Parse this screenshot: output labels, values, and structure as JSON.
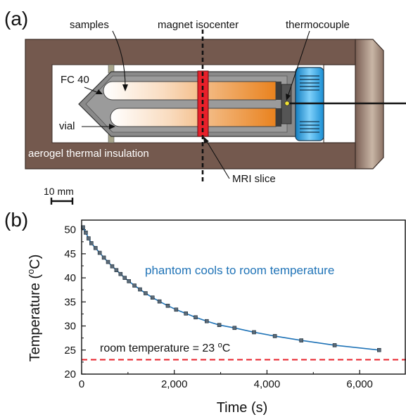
{
  "panel_a": {
    "letter": "(a)",
    "labels": {
      "samples": "samples",
      "magnet_isocenter": "magnet isocenter",
      "thermocouple": "thermocouple",
      "fc40": "FC 40",
      "vial": "vial",
      "insulation": "aerogel thermal insulation",
      "mri_slice": "MRI slice"
    },
    "scale_bar": "10 mm",
    "colors": {
      "housing": "#74594e",
      "slice": "#e8202a",
      "cap": "#1f9be0",
      "fluid": "#8c8c8c"
    }
  },
  "panel_b": {
    "letter": "(b)",
    "annotation": "phantom cools to room temperature",
    "room_label": "room temperature = 23 ",
    "room_label_sup": "o",
    "room_label_unit": "C"
  },
  "chart_data": {
    "type": "line",
    "xlabel": "Time (s)",
    "ylabel_main": "Temperature (",
    "ylabel_sup": "o",
    "ylabel_end": "C)",
    "xlim": [
      0,
      7000
    ],
    "ylim": [
      20,
      52
    ],
    "xticks": [
      0,
      2000,
      4000,
      6000
    ],
    "xtick_labels": [
      "0",
      "2,000",
      "4,000",
      "6,000"
    ],
    "yticks": [
      20,
      25,
      30,
      35,
      40,
      45,
      50
    ],
    "ytick_labels": [
      "20",
      "25",
      "30",
      "35",
      "40",
      "45",
      "50"
    ],
    "reference_line": {
      "y": 23,
      "color": "#e8202a",
      "style": "dashed"
    },
    "series": [
      {
        "color": "#1f73b7",
        "marker_color": "#5a6a78",
        "points": [
          [
            30,
            50.5
          ],
          [
            90,
            49.4
          ],
          [
            150,
            48.2
          ],
          [
            210,
            47.2
          ],
          [
            300,
            46.2
          ],
          [
            390,
            45.2
          ],
          [
            480,
            44.2
          ],
          [
            570,
            43.3
          ],
          [
            660,
            42.4
          ],
          [
            750,
            41.6
          ],
          [
            840,
            40.8
          ],
          [
            930,
            40.0
          ],
          [
            1020,
            39.3
          ],
          [
            1140,
            38.4
          ],
          [
            1260,
            37.6
          ],
          [
            1380,
            36.8
          ],
          [
            1530,
            35.9
          ],
          [
            1680,
            35.1
          ],
          [
            1860,
            34.2
          ],
          [
            2040,
            33.4
          ],
          [
            2250,
            32.6
          ],
          [
            2460,
            31.8
          ],
          [
            2700,
            31.0
          ],
          [
            2970,
            30.2
          ],
          [
            3300,
            29.6
          ],
          [
            3720,
            28.7
          ],
          [
            4170,
            27.9
          ],
          [
            4740,
            27.0
          ],
          [
            5460,
            26.0
          ],
          [
            6420,
            25.0
          ]
        ]
      }
    ]
  }
}
